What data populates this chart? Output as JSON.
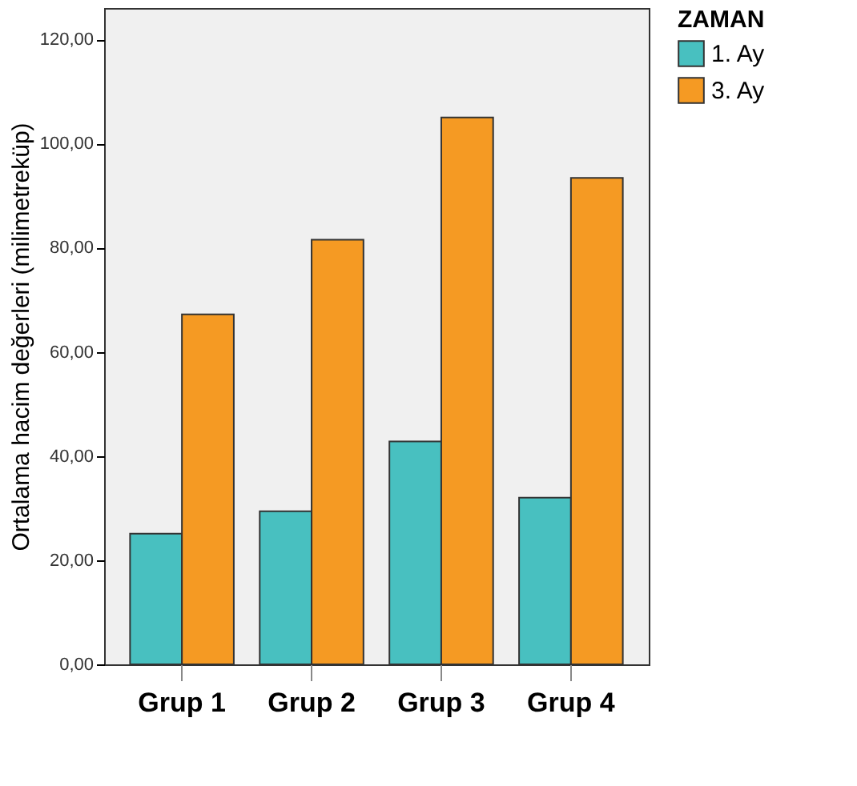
{
  "chart_data": {
    "type": "bar",
    "ylabel": "Ortalama hacim değerleri (milimetreküp)",
    "legend_title": "ZAMAN",
    "categories": [
      "Grup 1",
      "Grup 2",
      "Grup 3",
      "Grup 4"
    ],
    "series": [
      {
        "name": "1. Ay",
        "color": "#48c0c0",
        "values": [
          25.1,
          29.4,
          42.8,
          32.0
        ]
      },
      {
        "name": "3. Ay",
        "color": "#f59a23",
        "values": [
          67.2,
          81.5,
          105.0,
          93.4
        ]
      }
    ],
    "ylim": [
      0,
      126
    ],
    "yticks": [
      {
        "value": 0,
        "label": "0,00"
      },
      {
        "value": 20,
        "label": "20,00"
      },
      {
        "value": 40,
        "label": "40,00"
      },
      {
        "value": 60,
        "label": "60,00"
      },
      {
        "value": 80,
        "label": "80,00"
      },
      {
        "value": 100,
        "label": "100,00"
      },
      {
        "value": 120,
        "label": "120,00"
      }
    ],
    "grid": false,
    "legend": "top right"
  }
}
